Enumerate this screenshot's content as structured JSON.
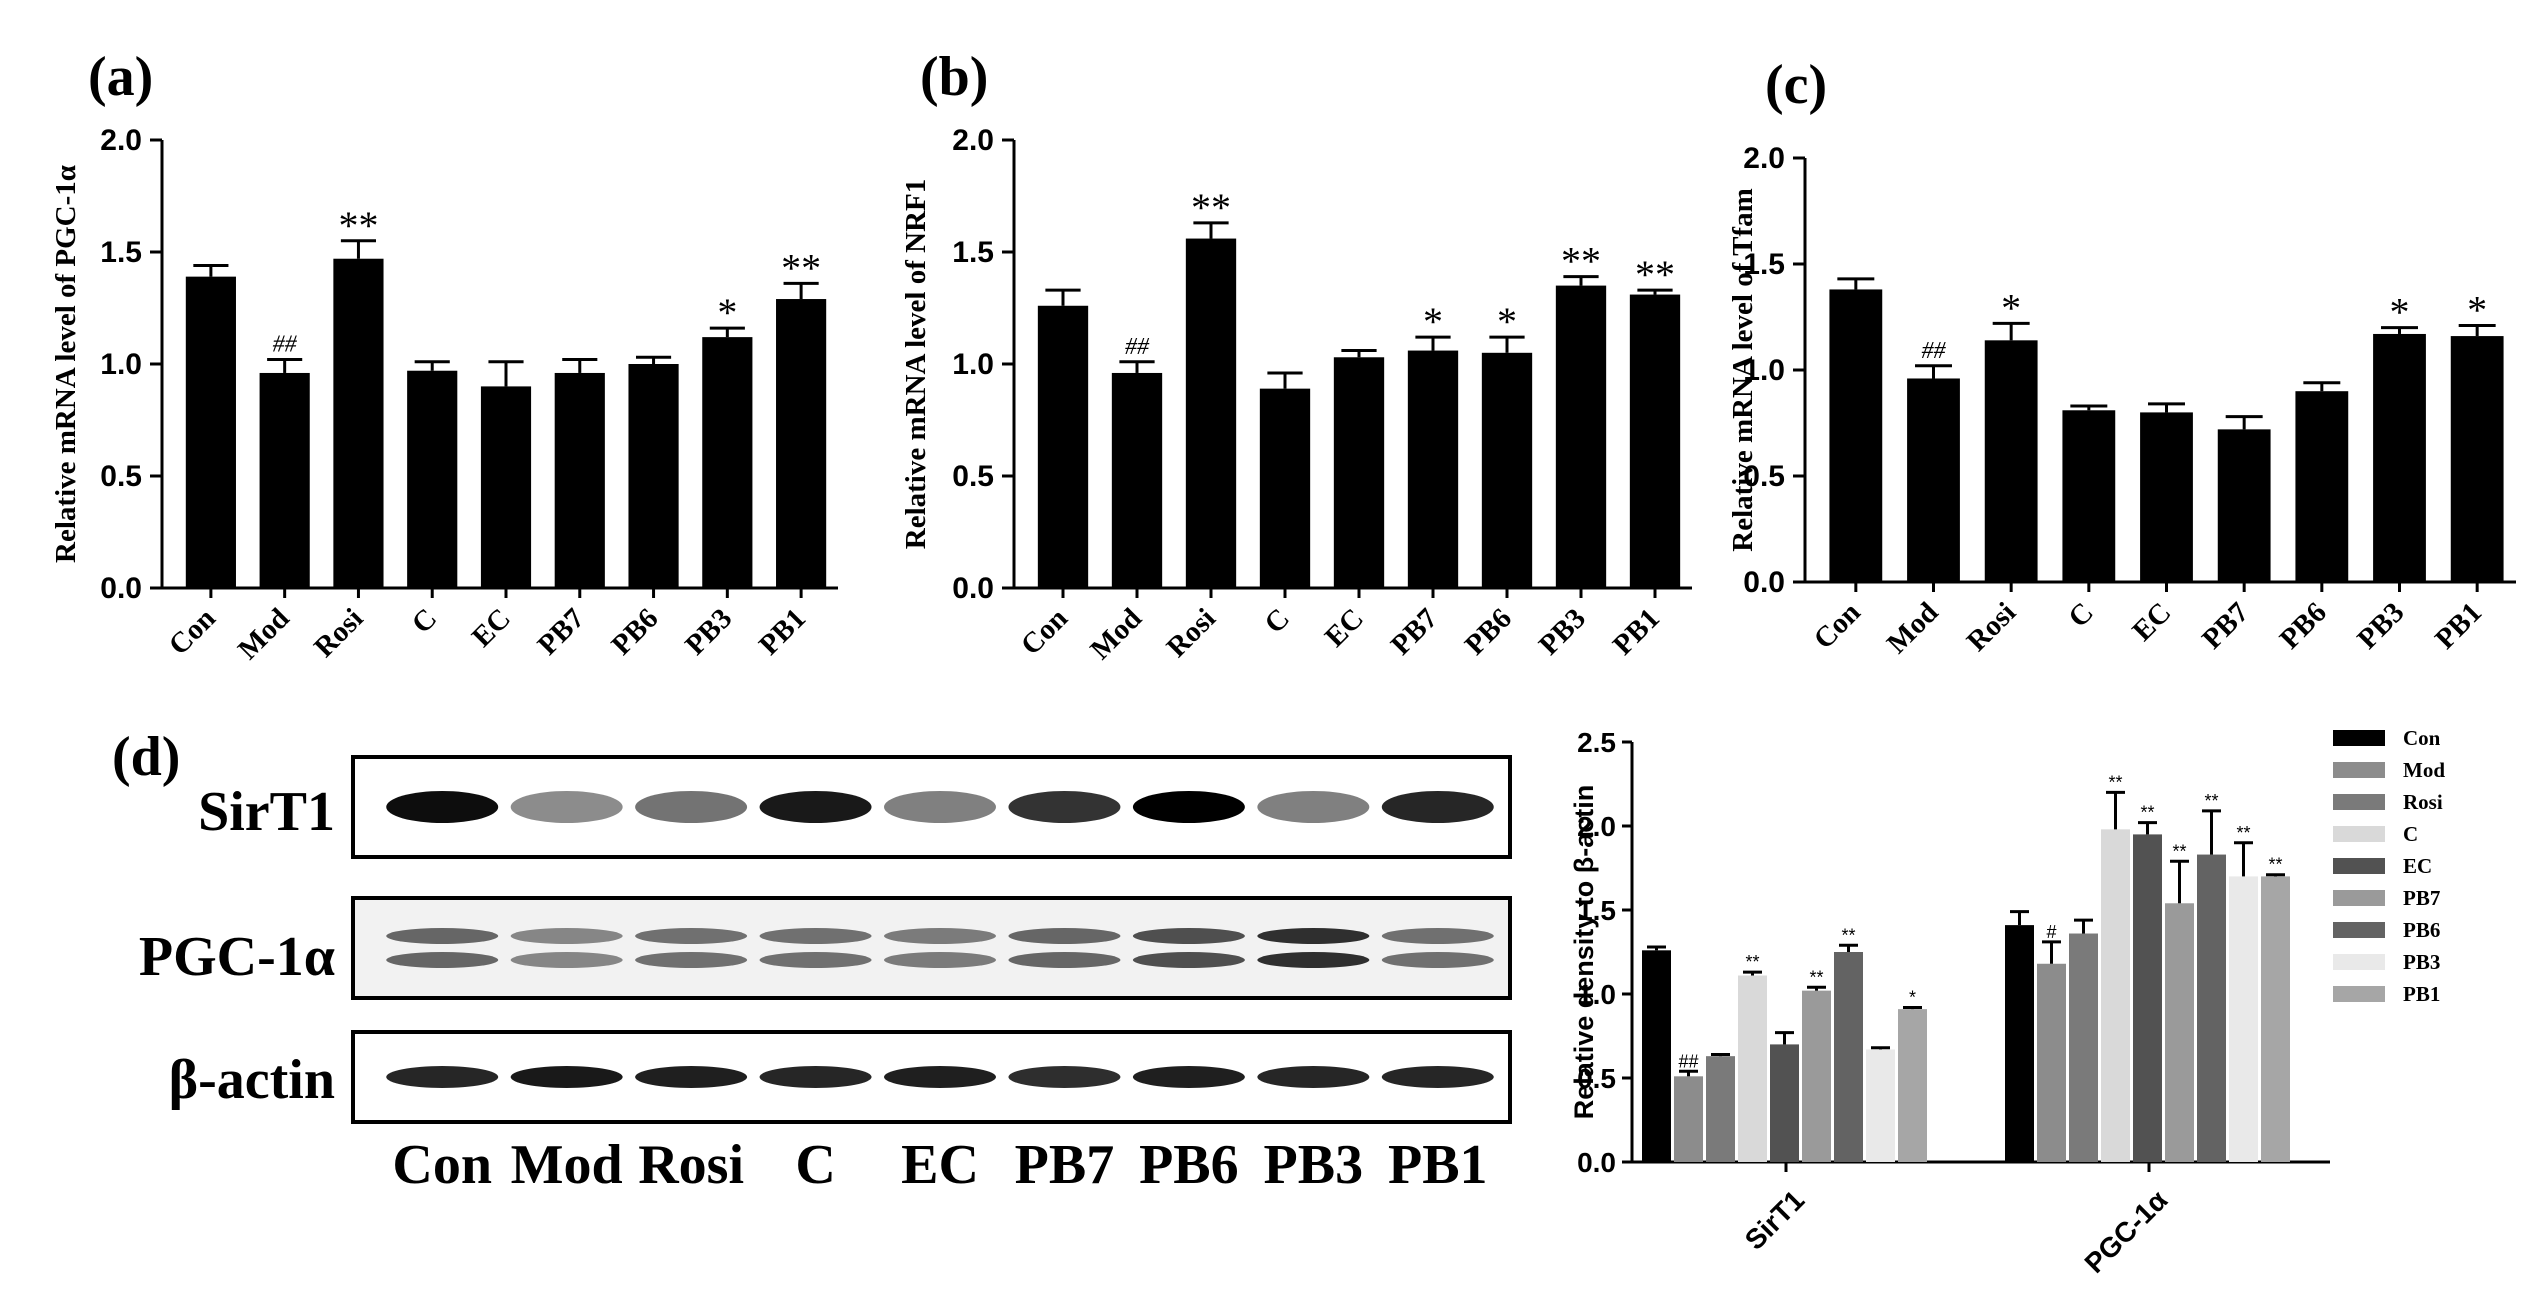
{
  "panels": [
    {
      "letter": "(a)",
      "chart_data": {
        "type": "bar",
        "categories": [
          "Con",
          "Mod",
          "Rosi",
          "C",
          "EC",
          "PB7",
          "PB6",
          "PB3",
          "PB1"
        ],
        "values": [
          1.39,
          0.96,
          1.47,
          0.97,
          0.9,
          0.96,
          1.0,
          1.12,
          1.29
        ],
        "errors": [
          0.05,
          0.06,
          0.08,
          0.04,
          0.11,
          0.06,
          0.03,
          0.04,
          0.07
        ],
        "annotations": [
          "",
          "##",
          "**",
          "",
          "",
          "",
          "",
          "*",
          "**"
        ],
        "yticks": [
          "0.0",
          "0.5",
          "1.0",
          "1.5",
          "2.0"
        ],
        "ylim": [
          0,
          2.0
        ],
        "ylabel": "Relative  mRNA level of PGC-1α",
        "xlabel": "",
        "title": ""
      }
    },
    {
      "letter": "(b)",
      "chart_data": {
        "type": "bar",
        "categories": [
          "Con",
          "Mod",
          "Rosi",
          "C",
          "EC",
          "PB7",
          "PB6",
          "PB3",
          "PB1"
        ],
        "values": [
          1.26,
          0.96,
          1.56,
          0.89,
          1.03,
          1.06,
          1.05,
          1.35,
          1.31
        ],
        "errors": [
          0.07,
          0.05,
          0.07,
          0.07,
          0.03,
          0.06,
          0.07,
          0.04,
          0.02
        ],
        "annotations": [
          "",
          "##",
          "**",
          "",
          "",
          "*",
          "*",
          "**",
          "**"
        ],
        "yticks": [
          "0.0",
          "0.5",
          "1.0",
          "1.5",
          "2.0"
        ],
        "ylim": [
          0,
          2.0
        ],
        "ylabel": "Relative  mRNA level of NRF1",
        "xlabel": "",
        "title": ""
      }
    },
    {
      "letter": "(c)",
      "chart_data": {
        "type": "bar",
        "categories": [
          "Con",
          "Mod",
          "Rosi",
          "C",
          "EC",
          "PB7",
          "PB6",
          "PB3",
          "PB1"
        ],
        "values": [
          1.38,
          0.96,
          1.14,
          0.81,
          0.8,
          0.72,
          0.9,
          1.17,
          1.16
        ],
        "errors": [
          0.05,
          0.06,
          0.08,
          0.02,
          0.04,
          0.06,
          0.04,
          0.03,
          0.05
        ],
        "annotations": [
          "",
          "##",
          "*",
          "",
          "",
          "",
          "",
          "*",
          "*"
        ],
        "yticks": [
          "0.0",
          "0.5",
          "1.0",
          "1.5",
          "2.0"
        ],
        "ylim": [
          0,
          2.0
        ],
        "ylabel": "Relative mRNA level of Tfam",
        "xlabel": "",
        "title": ""
      }
    }
  ],
  "panel_d": {
    "letter": "(d)",
    "blot_labels": [
      "SirT1",
      "PGC-1α",
      "β-actin"
    ],
    "lane_labels": [
      "Con",
      "Mod",
      "Rosi",
      "C",
      "EC",
      "PB7",
      "PB6",
      "PB3",
      "PB1"
    ],
    "band_intensity": {
      "SirT1": [
        0.95,
        0.45,
        0.55,
        0.9,
        0.5,
        0.8,
        1.0,
        0.5,
        0.85
      ],
      "PGC-1α": [
        0.7,
        0.55,
        0.65,
        0.65,
        0.6,
        0.7,
        0.8,
        0.95,
        0.65
      ],
      "β-actin": [
        0.85,
        0.9,
        0.88,
        0.85,
        0.88,
        0.82,
        0.88,
        0.85,
        0.85
      ]
    },
    "chart_data": {
      "type": "bar",
      "categories": [
        "SirT1",
        "PGC-1α"
      ],
      "series": [
        {
          "name": "Con",
          "values": [
            1.26,
            1.41
          ],
          "errors": [
            0.02,
            0.08
          ],
          "annotations": [
            "",
            ""
          ],
          "color": "#000000"
        },
        {
          "name": "Mod",
          "values": [
            0.51,
            1.18
          ],
          "errors": [
            0.03,
            0.13
          ],
          "annotations": [
            "##",
            "#"
          ],
          "color": "#8c8c8c"
        },
        {
          "name": "Rosi",
          "values": [
            0.63,
            1.36
          ],
          "errors": [
            0.01,
            0.08
          ],
          "annotations": [
            "",
            ""
          ],
          "color": "#7a7a7a"
        },
        {
          "name": "C",
          "values": [
            1.11,
            1.98
          ],
          "errors": [
            0.02,
            0.22
          ],
          "annotations": [
            "**",
            "**"
          ],
          "color": "#d9d9d9"
        },
        {
          "name": "EC",
          "values": [
            0.7,
            1.95
          ],
          "errors": [
            0.07,
            0.07
          ],
          "annotations": [
            "",
            "**"
          ],
          "color": "#525252"
        },
        {
          "name": "PB7",
          "values": [
            1.02,
            1.54
          ],
          "errors": [
            0.02,
            0.25
          ],
          "annotations": [
            "**",
            "**"
          ],
          "color": "#9a9a9a"
        },
        {
          "name": "PB6",
          "values": [
            1.25,
            1.83
          ],
          "errors": [
            0.04,
            0.26
          ],
          "annotations": [
            "**",
            "**"
          ],
          "color": "#636363"
        },
        {
          "name": "PB3",
          "values": [
            0.67,
            1.7
          ],
          "errors": [
            0.01,
            0.2
          ],
          "annotations": [
            "",
            "**"
          ],
          "color": "#e9e9e9"
        },
        {
          "name": "PB1",
          "values": [
            0.91,
            1.7
          ],
          "errors": [
            0.01,
            0.01
          ],
          "annotations": [
            "*",
            "**"
          ],
          "color": "#a6a6a6"
        }
      ],
      "yticks": [
        "0.0",
        "0.5",
        "1.0",
        "1.5",
        "2.0",
        "2.5"
      ],
      "ylim": [
        0,
        2.5
      ],
      "ylabel": "Relative density to β-actin",
      "xlabel": "",
      "title": "",
      "legend_position": "right"
    }
  }
}
